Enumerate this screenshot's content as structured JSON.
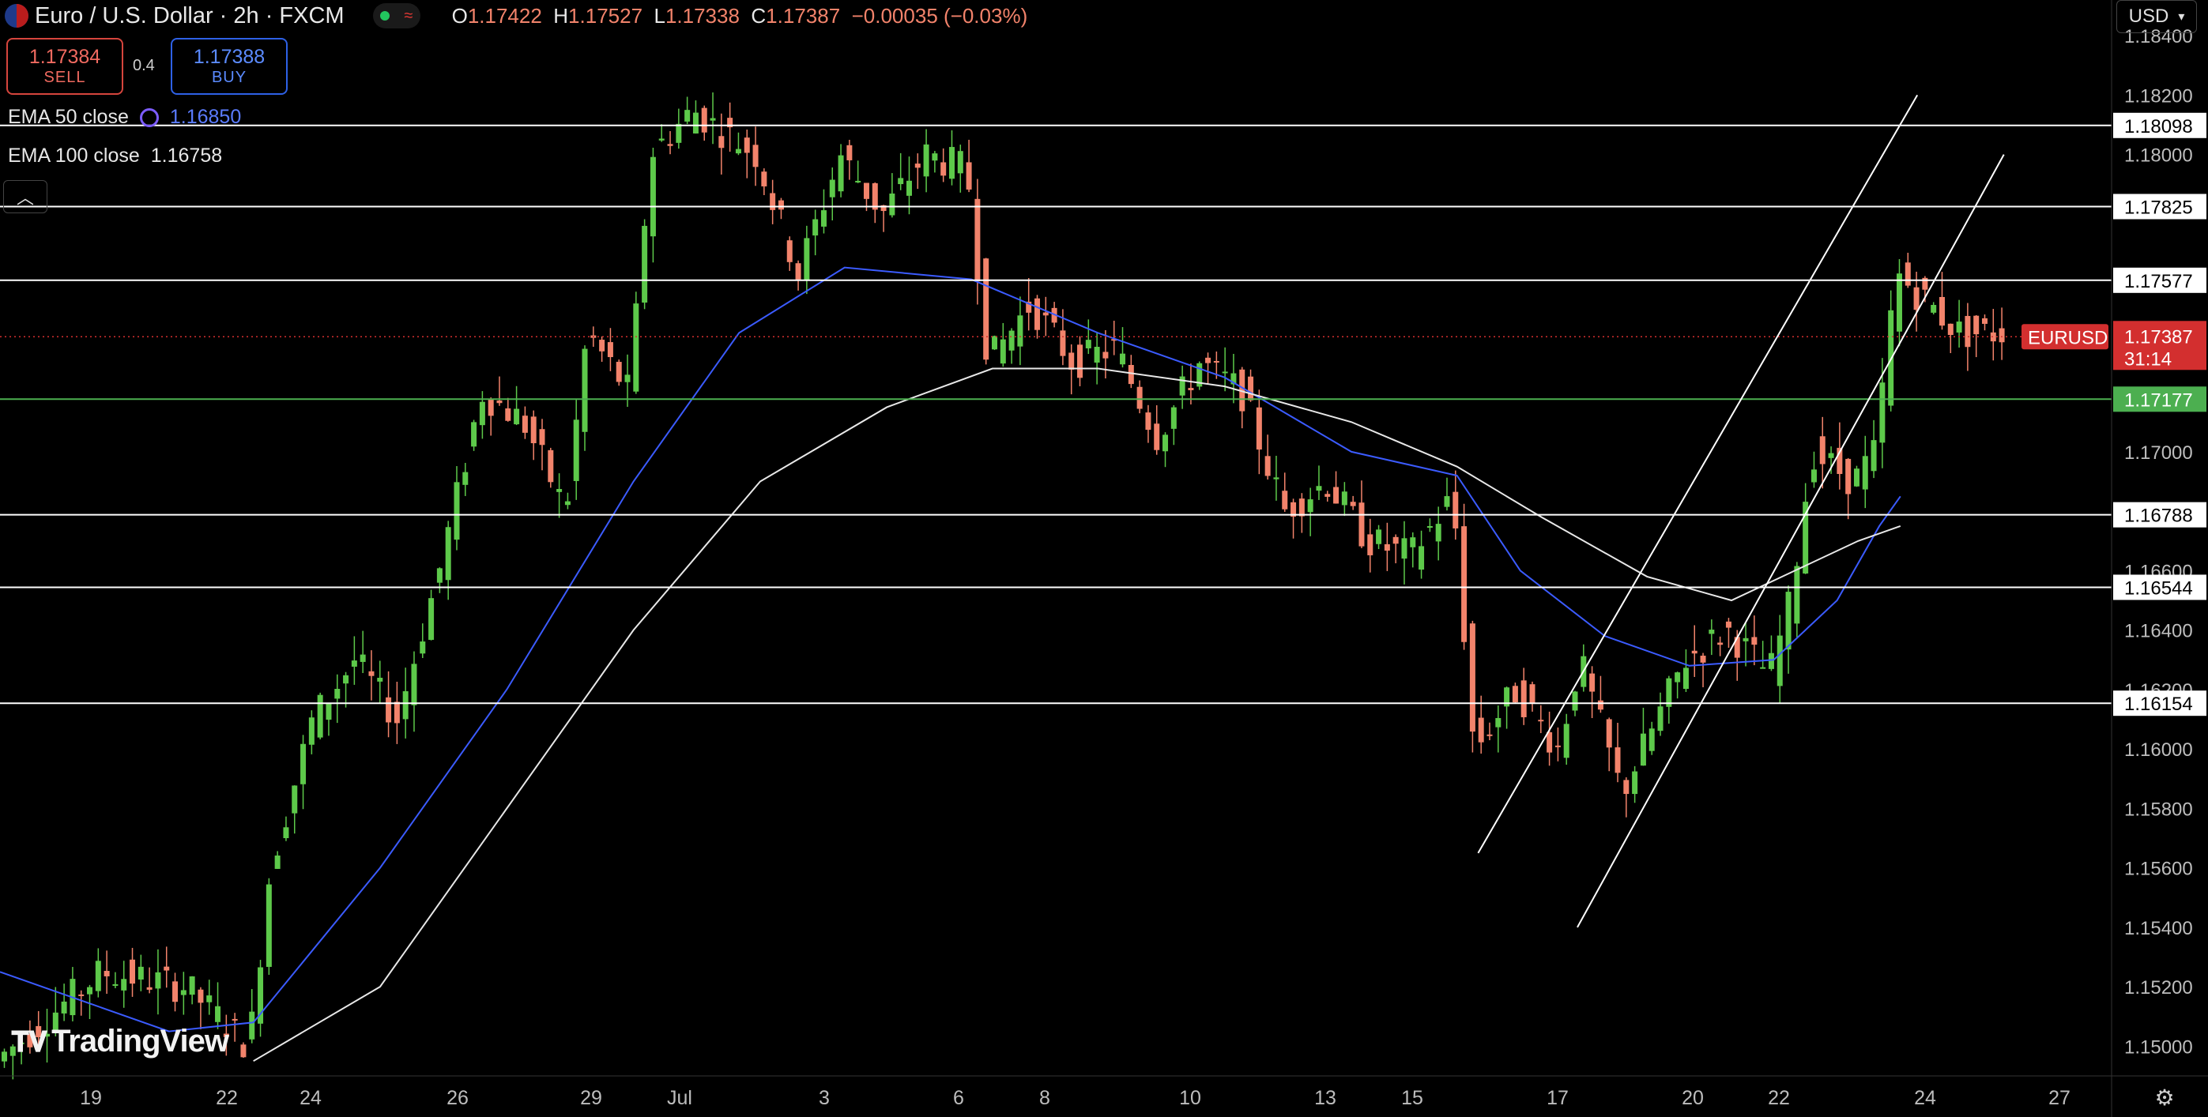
{
  "header": {
    "symbol_title": "Euro / U.S. Dollar · 2h · FXCM",
    "ohlc": {
      "o_label": "O",
      "o": "1.17422",
      "h_label": "H",
      "h": "1.17527",
      "l_label": "L",
      "l": "1.17338",
      "c_label": "C",
      "c": "1.17387",
      "change": "−0.00035 (−0.03%)"
    }
  },
  "trade": {
    "sell_price": "1.17384",
    "sell_label": "SELL",
    "spread": "0.4",
    "buy_price": "1.17388",
    "buy_label": "BUY"
  },
  "indicators": {
    "ema50_label": "EMA 50 close",
    "ema50_value": "1.16850",
    "ema100_label": "EMA 100 close",
    "ema100_value": "1.16758"
  },
  "currency_button": "USD",
  "watermark": "TradingView",
  "colors": {
    "up": "#5dc94a",
    "down": "#f2836b",
    "ema50": "#3b5bff",
    "ema100": "#e8e8e8",
    "price_tag": "#d32f2f",
    "green_level": "#4caf50"
  },
  "chart_data": {
    "type": "candlestick",
    "instrument": "EURUSD",
    "ylim": [
      1.149,
      1.1852
    ],
    "y_ticks": [
      "1.18400",
      "1.18200",
      "1.18000",
      "1.17000",
      "1.16600",
      "1.16400",
      "1.16200",
      "1.16000",
      "1.15800",
      "1.15600",
      "1.15400",
      "1.15200",
      "1.15000"
    ],
    "x_ticks": [
      "19",
      "22",
      "24",
      "26",
      "29",
      "Jul",
      "3",
      "6",
      "8",
      "10",
      "13",
      "15",
      "17",
      "20",
      "22",
      "24",
      "27"
    ],
    "levels": [
      {
        "value": 1.18098,
        "label": "1.18098",
        "color": "#ffffff"
      },
      {
        "value": 1.17825,
        "label": "1.17825",
        "color": "#ffffff"
      },
      {
        "value": 1.17577,
        "label": "1.17577",
        "color": "#ffffff"
      },
      {
        "value": 1.17177,
        "label": "1.17177",
        "color": "#4caf50"
      },
      {
        "value": 1.16788,
        "label": "1.16788",
        "color": "#ffffff"
      },
      {
        "value": 1.16544,
        "label": "1.16544",
        "color": "#ffffff"
      },
      {
        "value": 1.16154,
        "label": "1.16154",
        "color": "#ffffff"
      }
    ],
    "last_price": {
      "value": 1.17387,
      "label": "1.17387",
      "countdown": "31:14",
      "symbol_tag": "EURUSD"
    },
    "price_path_anchors": [
      [
        0,
        1.1495
      ],
      [
        0.05,
        1.1525
      ],
      [
        0.09,
        1.152
      ],
      [
        0.12,
        1.15
      ],
      [
        0.13,
        1.156
      ],
      [
        0.15,
        1.161
      ],
      [
        0.17,
        1.163
      ],
      [
        0.19,
        1.161
      ],
      [
        0.21,
        1.166
      ],
      [
        0.23,
        1.172
      ],
      [
        0.25,
        1.171
      ],
      [
        0.27,
        1.168
      ],
      [
        0.28,
        1.174
      ],
      [
        0.3,
        1.172
      ],
      [
        0.31,
        1.18
      ],
      [
        0.33,
        1.1815
      ],
      [
        0.36,
        1.18
      ],
      [
        0.38,
        1.176
      ],
      [
        0.4,
        1.18
      ],
      [
        0.42,
        1.178
      ],
      [
        0.44,
        1.18
      ],
      [
        0.46,
        1.1795
      ],
      [
        0.47,
        1.173
      ],
      [
        0.49,
        1.175
      ],
      [
        0.51,
        1.173
      ],
      [
        0.53,
        1.1735
      ],
      [
        0.55,
        1.1705
      ],
      [
        0.57,
        1.173
      ],
      [
        0.59,
        1.172
      ],
      [
        0.61,
        1.168
      ],
      [
        0.63,
        1.169
      ],
      [
        0.65,
        1.167
      ],
      [
        0.67,
        1.1665
      ],
      [
        0.69,
        1.1685
      ],
      [
        0.7,
        1.16
      ],
      [
        0.72,
        1.162
      ],
      [
        0.74,
        1.16
      ],
      [
        0.75,
        1.163
      ],
      [
        0.77,
        1.1585
      ],
      [
        0.78,
        1.16
      ],
      [
        0.8,
        1.163
      ],
      [
        0.82,
        1.164
      ],
      [
        0.84,
        1.1625
      ],
      [
        0.85,
        1.165
      ],
      [
        0.86,
        1.17
      ],
      [
        0.88,
        1.169
      ],
      [
        0.89,
        1.17
      ],
      [
        0.9,
        1.176
      ],
      [
        0.93,
        1.174
      ],
      [
        0.95,
        1.174
      ]
    ],
    "ema50_path": [
      [
        0,
        1.1525
      ],
      [
        0.08,
        1.1505
      ],
      [
        0.12,
        1.1508
      ],
      [
        0.18,
        1.156
      ],
      [
        0.24,
        1.162
      ],
      [
        0.3,
        1.169
      ],
      [
        0.35,
        1.174
      ],
      [
        0.4,
        1.1762
      ],
      [
        0.46,
        1.1758
      ],
      [
        0.52,
        1.174
      ],
      [
        0.58,
        1.1725
      ],
      [
        0.64,
        1.17
      ],
      [
        0.69,
        1.1692
      ],
      [
        0.72,
        1.166
      ],
      [
        0.76,
        1.1638
      ],
      [
        0.8,
        1.1628
      ],
      [
        0.84,
        1.163
      ],
      [
        0.87,
        1.165
      ],
      [
        0.89,
        1.1675
      ],
      [
        0.9,
        1.1685
      ]
    ],
    "ema100_path": [
      [
        0.12,
        1.1495
      ],
      [
        0.18,
        1.152
      ],
      [
        0.24,
        1.158
      ],
      [
        0.3,
        1.164
      ],
      [
        0.36,
        1.169
      ],
      [
        0.42,
        1.1715
      ],
      [
        0.47,
        1.1728
      ],
      [
        0.52,
        1.1728
      ],
      [
        0.58,
        1.1722
      ],
      [
        0.64,
        1.171
      ],
      [
        0.69,
        1.1695
      ],
      [
        0.73,
        1.1678
      ],
      [
        0.78,
        1.1658
      ],
      [
        0.82,
        1.165
      ],
      [
        0.85,
        1.166
      ],
      [
        0.88,
        1.167
      ],
      [
        0.9,
        1.1675
      ]
    ],
    "trend_channel": [
      {
        "from": [
          0.7,
          1.1565
        ],
        "to": [
          0.908,
          1.182
        ]
      },
      {
        "from": [
          0.747,
          1.154
        ],
        "to": [
          0.949,
          1.18
        ]
      }
    ]
  }
}
